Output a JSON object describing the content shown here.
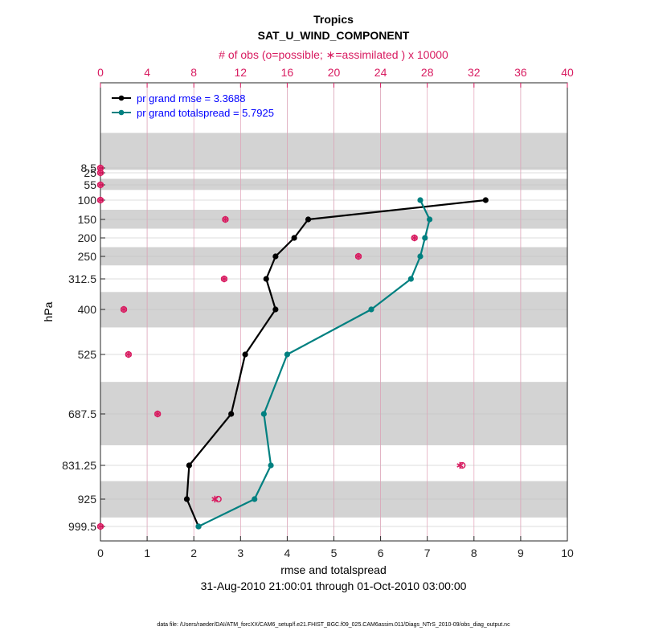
{
  "chart_data": {
    "type": "line",
    "title": "Tropics",
    "subtitle": "SAT_U_WIND_COMPONENT",
    "top_axis_label": "# of obs (o=possible; ∗=assimilated ) x 10000",
    "xlabel": "rmse and totalspread",
    "ylabel": "hPa",
    "date_range": "31-Aug-2010 21:00:01 through 01-Oct-2010 03:00:00",
    "footnote": "data file: /Users/raeder/DAI/ATM_forcXX/CAM6_setup/f.e21.FHIST_BGC.f09_025.CAM6assim.011/Diags_NTrS_2010-09/obs_diag_output.nc",
    "xlim": [
      0,
      10
    ],
    "x_ticks": [
      "0",
      "1",
      "2",
      "3",
      "4",
      "5",
      "6",
      "7",
      "8",
      "9",
      "10"
    ],
    "top_xlim": [
      0,
      40
    ],
    "top_ticks": [
      "0",
      "4",
      "8",
      "12",
      "16",
      "20",
      "24",
      "28",
      "32",
      "36",
      "40"
    ],
    "levels": [
      8.5,
      25,
      55,
      100,
      150,
      200,
      250,
      312.5,
      400,
      525,
      687.5,
      831.25,
      925,
      999.5
    ],
    "y_tick_labels": [
      "8.5",
      "25",
      "55",
      "100",
      "150",
      "200",
      "250",
      "312.5",
      "400",
      "525",
      "687.5",
      "831.25",
      "925",
      "999.5"
    ],
    "shaded_bands_hpa": [
      [
        5,
        15
      ],
      [
        40,
        70
      ],
      [
        125,
        175
      ],
      [
        225,
        275
      ],
      [
        350,
        450
      ],
      [
        600,
        775
      ],
      [
        875,
        975
      ]
    ],
    "legend_position": "top-left",
    "series": [
      {
        "name": "pr grand rmse = 3.3688",
        "color": "#000000",
        "points": [
          [
            8.25,
            100
          ],
          [
            4.45,
            150
          ],
          [
            4.15,
            200
          ],
          [
            3.75,
            250
          ],
          [
            3.55,
            312.5
          ],
          [
            3.75,
            400
          ],
          [
            3.1,
            525
          ],
          [
            2.8,
            687.5
          ],
          [
            1.9,
            831.25
          ],
          [
            1.85,
            925
          ],
          [
            2.1,
            999.5
          ]
        ]
      },
      {
        "name": "pr grand totalspread = 5.7925",
        "color": "#008080",
        "points": [
          [
            6.85,
            100
          ],
          [
            7.05,
            150
          ],
          [
            6.95,
            200
          ],
          [
            6.85,
            250
          ],
          [
            6.65,
            312.5
          ],
          [
            5.8,
            400
          ],
          [
            4.0,
            525
          ],
          [
            3.5,
            687.5
          ],
          [
            3.65,
            831.25
          ],
          [
            3.3,
            925
          ],
          [
            2.1,
            999.5
          ]
        ]
      }
    ],
    "obs_counts": {
      "color": "#d81b60",
      "possible": [
        [
          0,
          8.5
        ],
        [
          0,
          25
        ],
        [
          0,
          55
        ],
        [
          0,
          100
        ],
        [
          10.7,
          150
        ],
        [
          26.9,
          200
        ],
        [
          22.1,
          250
        ],
        [
          10.6,
          312.5
        ],
        [
          2.0,
          400
        ],
        [
          2.4,
          525
        ],
        [
          4.9,
          687.5
        ],
        [
          31.0,
          831.25
        ],
        [
          10.1,
          925
        ],
        [
          0,
          999.5
        ]
      ],
      "assimilated": [
        [
          0,
          8.5
        ],
        [
          0,
          25
        ],
        [
          0,
          55
        ],
        [
          0,
          100
        ],
        [
          10.7,
          150
        ],
        [
          26.9,
          200
        ],
        [
          22.1,
          250
        ],
        [
          10.6,
          312.5
        ],
        [
          2.0,
          400
        ],
        [
          2.4,
          525
        ],
        [
          4.9,
          687.5
        ],
        [
          30.8,
          831.25
        ],
        [
          9.8,
          925
        ],
        [
          0,
          999.5
        ]
      ]
    }
  }
}
